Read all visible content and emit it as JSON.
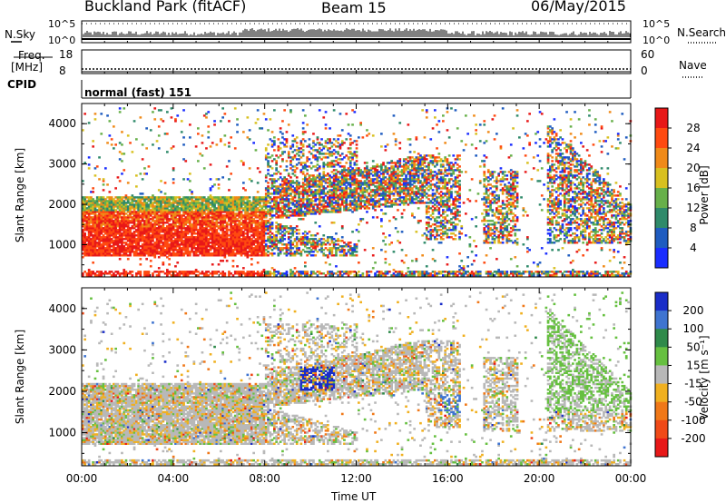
{
  "header": {
    "station": "Buckland Park (fitACF)",
    "beam": "Beam 15",
    "date": "06/May/2015"
  },
  "noise_panel": {
    "left_label": "N.Sky",
    "right_label": "N.Search",
    "tick_top": "10^5",
    "tick_bottom": "10^0"
  },
  "freq_panel": {
    "left_label_1": "Freq.",
    "left_label_2": "[MHz]",
    "left_ticks": [
      "18",
      "8"
    ],
    "right_label": "Nave",
    "right_ticks": [
      "60",
      "0"
    ]
  },
  "cpid_panel": {
    "label": "CPID",
    "text": "normal (fast) 151"
  },
  "chart_data": [
    {
      "type": "heatmap",
      "title": "",
      "xlabel": "Time UT",
      "ylabel": "Slant Range [km]",
      "xlim": [
        0,
        24
      ],
      "ylim": [
        200,
        4500
      ],
      "x_ticks": [
        "00:00",
        "04:00",
        "08:00",
        "12:00",
        "16:00",
        "20:00",
        "00:00"
      ],
      "y_ticks": [
        1000,
        2000,
        3000,
        4000
      ],
      "colorbar": {
        "label": "Power [dB]",
        "ticks": [
          "4",
          "8",
          "12",
          "16",
          "20",
          "24",
          "28"
        ],
        "colors": [
          "#1a2dff",
          "#1f5cc0",
          "#2f8a6a",
          "#67b04a",
          "#d8c020",
          "#f08a18",
          "#ff4a10",
          "#e81818"
        ]
      }
    },
    {
      "type": "heatmap",
      "title": "",
      "xlabel": "Time UT",
      "ylabel": "Slant Range [km]",
      "xlim": [
        0,
        24
      ],
      "ylim": [
        200,
        4500
      ],
      "x_ticks": [
        "00:00",
        "04:00",
        "08:00",
        "12:00",
        "16:00",
        "20:00",
        "00:00"
      ],
      "y_ticks": [
        1000,
        2000,
        3000,
        4000
      ],
      "colorbar": {
        "label": "Velocity [m s⁻¹]",
        "ticks": [
          "200",
          "100",
          "50",
          "15",
          "-15",
          "-50",
          "-100",
          "-200"
        ],
        "colors": [
          "#1a2dc8",
          "#3f74d0",
          "#2f8a4a",
          "#66c040",
          "#b8b8b8",
          "#f0b020",
          "#f07818",
          "#f04a18",
          "#e81818"
        ]
      }
    }
  ]
}
